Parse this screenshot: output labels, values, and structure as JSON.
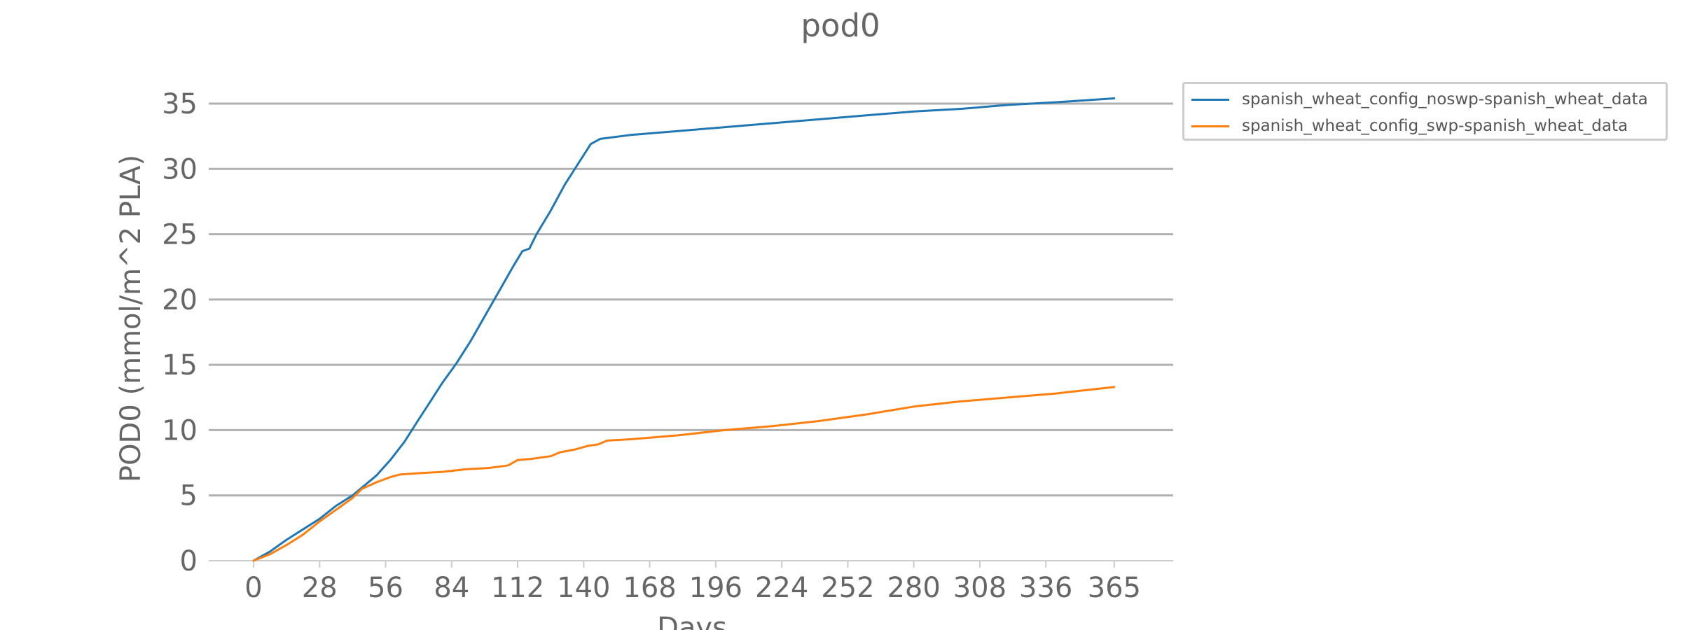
{
  "chart_data": {
    "type": "line",
    "title": "pod0",
    "xlabel": "Days",
    "ylabel": "POD0 (mmol/m^2 PLA)",
    "xlim": [
      -19,
      390
    ],
    "ylim": [
      0,
      35
    ],
    "x_ticks": [
      0,
      28,
      56,
      84,
      112,
      140,
      168,
      196,
      224,
      252,
      280,
      308,
      336,
      365
    ],
    "y_ticks": [
      0,
      5,
      10,
      15,
      20,
      25,
      30,
      35
    ],
    "grid": "horizontal",
    "legend_position": "upper-right-outside",
    "series": [
      {
        "name": "spanish_wheat_config_noswp-spanish_wheat_data",
        "color": "#1f77b4",
        "x": [
          0,
          7,
          14,
          21,
          28,
          35,
          42,
          46,
          52,
          58,
          64,
          70,
          75,
          80,
          86,
          92,
          98,
          104,
          110,
          114,
          117,
          120,
          126,
          132,
          138,
          143,
          147,
          160,
          180,
          200,
          220,
          240,
          260,
          280,
          300,
          320,
          340,
          365
        ],
        "y": [
          0,
          0.7,
          1.6,
          2.4,
          3.2,
          4.2,
          5.0,
          5.6,
          6.5,
          7.7,
          9.1,
          10.8,
          12.2,
          13.6,
          15.1,
          16.8,
          18.7,
          20.6,
          22.5,
          23.7,
          23.9,
          25.0,
          26.8,
          28.8,
          30.5,
          31.9,
          32.3,
          32.6,
          32.9,
          33.2,
          33.5,
          33.8,
          34.1,
          34.4,
          34.6,
          34.9,
          35.1,
          35.4
        ]
      },
      {
        "name": "spanish_wheat_config_swp-spanish_wheat_data",
        "color": "#ff7f0e",
        "x": [
          0,
          7,
          14,
          21,
          28,
          35,
          42,
          46,
          52,
          58,
          62,
          70,
          80,
          90,
          100,
          108,
          112,
          118,
          126,
          130,
          136,
          142,
          146,
          150,
          160,
          180,
          200,
          220,
          240,
          260,
          280,
          300,
          320,
          340,
          365
        ],
        "y": [
          0,
          0.5,
          1.2,
          2.0,
          3.0,
          3.9,
          4.8,
          5.5,
          6.0,
          6.4,
          6.6,
          6.7,
          6.8,
          7.0,
          7.1,
          7.3,
          7.7,
          7.8,
          8.0,
          8.3,
          8.5,
          8.8,
          8.9,
          9.2,
          9.3,
          9.6,
          10.0,
          10.3,
          10.7,
          11.2,
          11.8,
          12.2,
          12.5,
          12.8,
          13.3
        ]
      }
    ]
  }
}
